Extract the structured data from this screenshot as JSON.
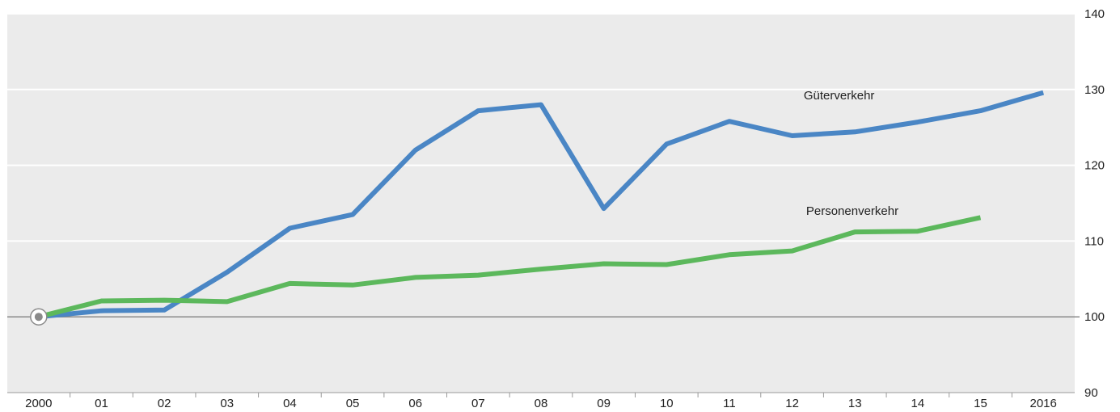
{
  "chart_data": {
    "type": "line",
    "title": "",
    "xlabel": "",
    "ylabel": "",
    "categories": [
      "2000",
      "01",
      "02",
      "03",
      "04",
      "05",
      "06",
      "07",
      "08",
      "09",
      "10",
      "11",
      "12",
      "13",
      "14",
      "15",
      "2016"
    ],
    "ylim": [
      90,
      140
    ],
    "yticks": [
      90,
      100,
      110,
      120,
      130,
      140
    ],
    "grid": true,
    "baseline": 100,
    "legend": "inline labels",
    "series": [
      {
        "name": "Güterverkehr",
        "color": "#4a86c5",
        "values": [
          100,
          100.8,
          100.9,
          105.9,
          111.7,
          113.5,
          122.0,
          127.2,
          128.0,
          114.3,
          122.8,
          125.8,
          123.9,
          124.4,
          125.7,
          127.2,
          129.6
        ]
      },
      {
        "name": "Personenverkehr",
        "color": "#5cb85c",
        "values": [
          100,
          102.1,
          102.2,
          102.0,
          104.4,
          104.2,
          105.2,
          105.5,
          106.3,
          107.0,
          106.9,
          108.2,
          108.7,
          111.2,
          111.3,
          113.1,
          null
        ]
      }
    ]
  }
}
